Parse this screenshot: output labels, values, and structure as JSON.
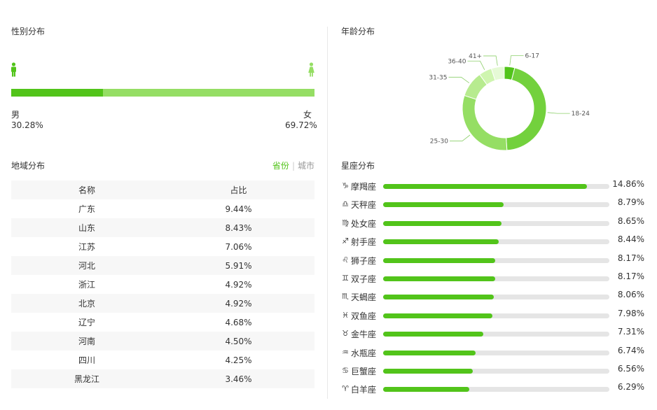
{
  "gender": {
    "title": "性别分布",
    "male_label": "男",
    "male_pct": "30.28%",
    "male_value": 30.28,
    "female_label": "女",
    "female_pct": "69.72%",
    "female_value": 69.72,
    "colors": {
      "male": "#52c41a",
      "female": "#95de64"
    }
  },
  "region": {
    "title": "地域分布",
    "tabs": {
      "province": "省份",
      "city": "城市"
    },
    "columns": [
      "名称",
      "占比"
    ],
    "rows": [
      [
        "广东",
        "9.44%"
      ],
      [
        "山东",
        "8.43%"
      ],
      [
        "江苏",
        "7.06%"
      ],
      [
        "河北",
        "5.91%"
      ],
      [
        "浙江",
        "4.92%"
      ],
      [
        "北京",
        "4.92%"
      ],
      [
        "辽宁",
        "4.68%"
      ],
      [
        "河南",
        "4.50%"
      ],
      [
        "四川",
        "4.25%"
      ],
      [
        "黑龙江",
        "3.46%"
      ]
    ]
  },
  "age": {
    "title": "年龄分布",
    "chart_data": {
      "type": "pie",
      "categories": [
        "6-17",
        "18-24",
        "25-30",
        "31-35",
        "36-40",
        "41+"
      ],
      "values": [
        4,
        45,
        31,
        10,
        5,
        5
      ],
      "colors": [
        "#52c41a",
        "#73d13d",
        "#95de64",
        "#b7eb8f",
        "#cff5b0",
        "#e6fad6"
      ]
    }
  },
  "zodiac": {
    "title": "星座分布",
    "chart_data": {
      "type": "bar",
      "categories": [
        "摩羯座",
        "天秤座",
        "处女座",
        "射手座",
        "狮子座",
        "双子座",
        "天蝎座",
        "双鱼座",
        "金牛座",
        "水瓶座",
        "巨蟹座",
        "白羊座"
      ],
      "values": [
        14.86,
        8.79,
        8.65,
        8.44,
        8.17,
        8.17,
        8.06,
        7.98,
        7.31,
        6.74,
        6.56,
        6.29
      ],
      "labels": [
        "14.86%",
        "8.79%",
        "8.65%",
        "8.44%",
        "8.17%",
        "8.17%",
        "8.06%",
        "7.98%",
        "7.31%",
        "6.74%",
        "6.56%",
        "6.29%"
      ],
      "symbols": [
        "♑",
        "♎",
        "♍",
        "♐",
        "♌",
        "♊",
        "♏",
        "♓",
        "♉",
        "♒",
        "♋",
        "♈"
      ],
      "xlim": [
        0,
        16.5
      ],
      "bar_color": "#52c41a",
      "track_color": "#e5e5e5"
    }
  }
}
